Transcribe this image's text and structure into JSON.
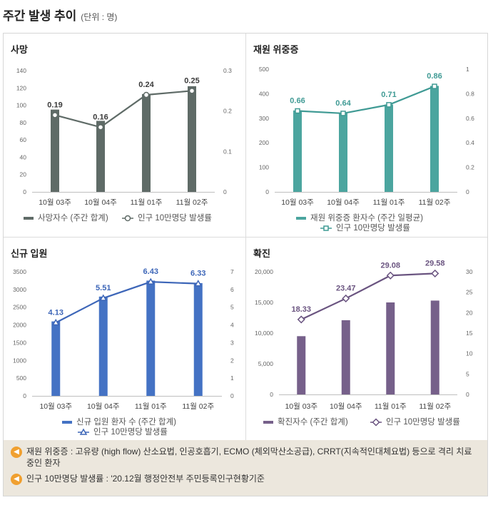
{
  "header": {
    "title": "주간 발생 추이",
    "unit": "(단위 : 명)"
  },
  "chart_data": [
    {
      "type": "bar",
      "title": "사망",
      "categories": [
        "10월 03주",
        "10월 04주",
        "11월 01주",
        "11월 02주"
      ],
      "series": [
        {
          "name": "사망자수 (주간 합계)",
          "values": [
            95,
            82,
            113,
            122
          ],
          "axis": "left"
        },
        {
          "name": "인구 10만명당 발생률",
          "values": [
            0.19,
            0.16,
            0.24,
            0.25
          ],
          "axis": "right",
          "type": "line",
          "marker": "circle"
        }
      ],
      "ylim": [
        0,
        140
      ],
      "y2lim": [
        0,
        0.3
      ],
      "yticks": [
        0,
        20,
        40,
        60,
        80,
        100,
        120,
        140
      ],
      "y2ticks": [
        "0",
        "0.1",
        "0.2",
        "0.3"
      ],
      "labels": [
        "0.19",
        "0.16",
        "0.24",
        "0.25"
      ],
      "bar_color": "#5f6b67",
      "line_color": "#5f6b67"
    },
    {
      "type": "bar",
      "title": "재원 위중증",
      "categories": [
        "10월 03주",
        "10월 04주",
        "11월 01주",
        "11월 02주"
      ],
      "series": [
        {
          "name": "재원 위중증 환자수 (주간 일평균)",
          "values": [
            332,
            320,
            356,
            432
          ],
          "axis": "left"
        },
        {
          "name": "인구 10만명당 발생률",
          "values": [
            0.66,
            0.64,
            0.71,
            0.86
          ],
          "axis": "right",
          "type": "line",
          "marker": "square"
        }
      ],
      "ylim": [
        0,
        500
      ],
      "y2lim": [
        0,
        1
      ],
      "yticks": [
        0,
        100,
        200,
        300,
        400,
        500
      ],
      "y2ticks": [
        "0",
        "0.2",
        "0.4",
        "0.6",
        "0.8",
        "1"
      ],
      "labels": [
        "0.66",
        "0.64",
        "0.71",
        "0.86"
      ],
      "bar_color": "#4ba59f",
      "line_color": "#3f9a94"
    },
    {
      "type": "bar",
      "title": "신규 입원",
      "categories": [
        "10월 03주",
        "10월 04주",
        "11월 01주",
        "11월 02주"
      ],
      "series": [
        {
          "name": "신규 입원 환자 수 (주간 합계)",
          "values": [
            2100,
            2800,
            3250,
            3180
          ],
          "axis": "left"
        },
        {
          "name": "인구 10만명당 발생률",
          "values": [
            4.13,
            5.51,
            6.43,
            6.33
          ],
          "axis": "right",
          "type": "line",
          "marker": "triangle"
        }
      ],
      "ylim": [
        0,
        3500
      ],
      "y2lim": [
        0,
        7
      ],
      "yticks": [
        0,
        500,
        1000,
        1500,
        2000,
        2500,
        3000,
        3500
      ],
      "y2ticks": [
        "0",
        "1",
        "2",
        "3",
        "4",
        "5",
        "6",
        "7"
      ],
      "labels": [
        "4.13",
        "5.51",
        "6.43",
        "6.33"
      ],
      "bar_color": "#4472c4",
      "line_color": "#3d66b8"
    },
    {
      "type": "bar",
      "title": "확진",
      "categories": [
        "10월 03주",
        "10월 04주",
        "11월 01주",
        "11월 02주"
      ],
      "series": [
        {
          "name": "확진자수 (주간 합계)",
          "values": [
            9500,
            12100,
            15000,
            15300
          ],
          "axis": "left"
        },
        {
          "name": "인구 10만명당 발생률",
          "values": [
            18.33,
            23.47,
            29.08,
            29.58
          ],
          "axis": "right",
          "type": "line",
          "marker": "diamond"
        }
      ],
      "ylim": [
        0,
        20000
      ],
      "y2lim": [
        0,
        30
      ],
      "yticks": [
        "0",
        "5,000",
        "10,000",
        "15,000",
        "20,000"
      ],
      "y2ticks": [
        "0",
        "5",
        "10",
        "15",
        "20",
        "25",
        "30"
      ],
      "labels": [
        "18.33",
        "23.47",
        "29.08",
        "29.58"
      ],
      "bar_color": "#76608a",
      "line_color": "#6a5480"
    }
  ],
  "notes": [
    {
      "text": "재원 위중증 : 고유량 (high flow) 산소요법, 인공호흡기, ECMO (체외막산소공급), CRRT(지속적인대체요법) 등으로 격리 치료 중인 환자"
    },
    {
      "text": "인구 10만명당 발생률 : '20.12월 행정안전부 주민등록인구현황기준"
    }
  ]
}
